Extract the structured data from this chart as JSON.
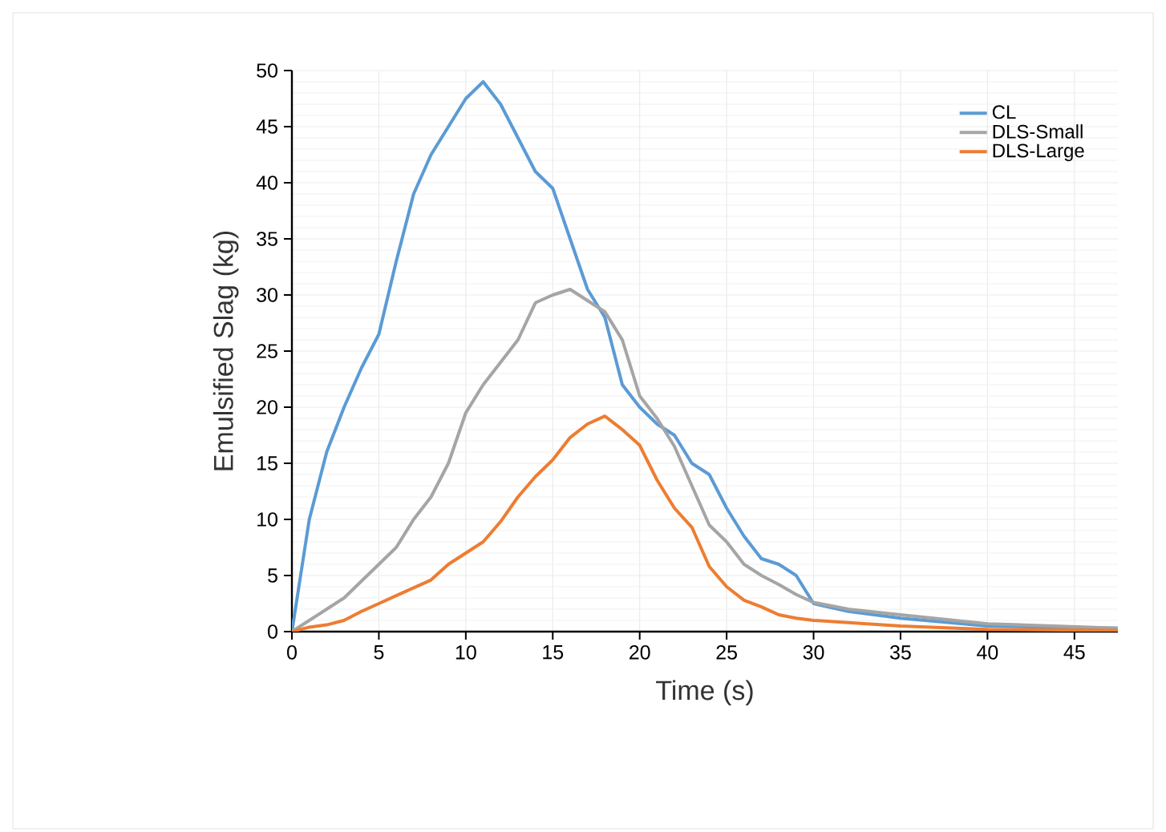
{
  "chart_data": {
    "type": "line",
    "xlabel": "Time (s)",
    "ylabel": "Emulsified Slag (kg)",
    "xlim": [
      0,
      47.5
    ],
    "ylim": [
      0,
      50
    ],
    "xticks": [
      0,
      5,
      10,
      15,
      20,
      25,
      30,
      35,
      40,
      45
    ],
    "yticks": [
      0,
      5,
      10,
      15,
      20,
      25,
      30,
      35,
      40,
      45,
      50
    ],
    "grid": true,
    "legend": "top right",
    "line_style": "solid",
    "marker": "none",
    "x": [
      0,
      1,
      2,
      3,
      4,
      5,
      6,
      7,
      8,
      9,
      10,
      11,
      12,
      13,
      14,
      15,
      16,
      17,
      18,
      19,
      20,
      21,
      22,
      23,
      24,
      25,
      26,
      27,
      28,
      29,
      30,
      32,
      35,
      40,
      47.5
    ],
    "series": [
      {
        "name": "CL",
        "color": "#5b9bd5",
        "values": [
          0,
          10,
          16,
          20,
          23.5,
          26.5,
          33,
          39,
          42.5,
          45,
          47.5,
          49,
          47,
          44,
          41,
          39.5,
          35,
          30.5,
          28,
          22,
          20,
          18.5,
          17.5,
          15,
          14,
          11,
          8.5,
          6.5,
          6,
          5,
          2.5,
          1.8,
          1.2,
          0.5,
          0.3
        ]
      },
      {
        "name": "DLS-Small",
        "color": "#a5a5a5",
        "values": [
          0,
          1,
          2,
          3,
          4.5,
          6,
          7.5,
          10,
          12,
          15,
          19.5,
          22,
          24,
          26,
          29.3,
          30,
          30.5,
          29.5,
          28.5,
          26,
          21,
          19,
          16.5,
          13,
          9.5,
          8,
          6,
          5,
          4.2,
          3.3,
          2.6,
          2,
          1.5,
          0.7,
          0.3
        ]
      },
      {
        "name": "DLS-Large",
        "color": "#ed7d31",
        "values": [
          0,
          0.4,
          0.6,
          1,
          1.8,
          2.5,
          3.2,
          3.9,
          4.6,
          6,
          7,
          8,
          9.8,
          12,
          13.8,
          15.3,
          17.3,
          18.5,
          19.2,
          18,
          16.6,
          13.5,
          11,
          9.3,
          5.8,
          4,
          2.8,
          2.2,
          1.5,
          1.2,
          1,
          0.8,
          0.5,
          0.2,
          0.1
        ]
      }
    ]
  }
}
